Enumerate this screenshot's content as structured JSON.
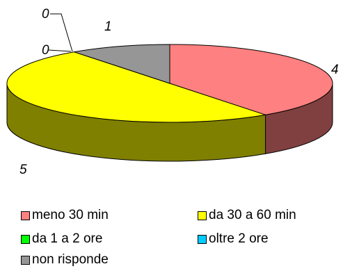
{
  "chart_data": {
    "type": "pie",
    "title": "",
    "categories": [
      "meno 30 min",
      "da 30 a 60 min",
      "da 1 a 2 ore",
      "oltre 2 ore",
      "non risponde"
    ],
    "values": [
      4,
      5,
      0,
      0,
      1
    ],
    "data_labels": [
      "4",
      "5",
      "0",
      "0",
      "1"
    ],
    "colors": [
      "#ff8080",
      "#ffff00",
      "#00ff00",
      "#00ccff",
      "#969696"
    ],
    "side_colors": [
      "#804040",
      "#808000",
      "#008000",
      "#006680",
      "#4b4b4b"
    ],
    "style": "3d",
    "legend_position": "bottom"
  },
  "legend": [
    {
      "label": "meno 30 min",
      "color": "#ff8080"
    },
    {
      "label": "da 30 a 60 min",
      "color": "#ffff00"
    },
    {
      "label": "da 1 a 2 ore",
      "color": "#00ff00"
    },
    {
      "label": "oltre 2 ore",
      "color": "#00ccff"
    },
    {
      "label": "non risponde",
      "color": "#969696"
    }
  ]
}
